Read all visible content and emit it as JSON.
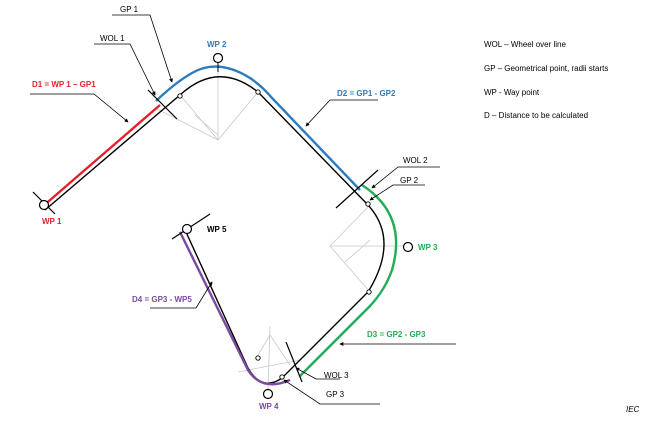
{
  "colors": {
    "red": "#e8202a",
    "blue": "#2b7bc0",
    "green": "#1fae55",
    "purple": "#7a4aa1",
    "black": "#000000",
    "gray": "#c8c8c8"
  },
  "labels": {
    "gp1": "GP 1",
    "wol1": "WOL 1",
    "wp2": "WP 2",
    "d1": "D1 = WP 1 – GP1",
    "wp1": "WP 1",
    "d2": "D2 = GP1 - GP2",
    "wol2": "WOL 2",
    "gp2": "GP 2",
    "wp3": "WP 3",
    "wp5": "WP 5",
    "d4": "D4 = GP3 - WP5",
    "d3": "D3 = GP2 - GP3",
    "wol3": "WOL 3",
    "gp3": "GP 3",
    "wp4": "WP 4"
  },
  "legend": [
    "WOL – Wheel over line",
    "GP – Geometrical point, radii starts",
    "WP - Way point",
    "D – Distance to be calculated"
  ],
  "source": "IEC"
}
